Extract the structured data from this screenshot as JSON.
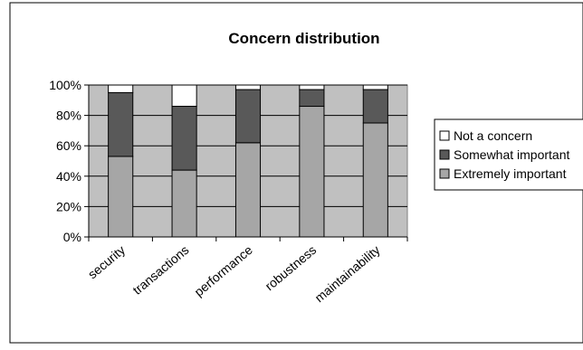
{
  "chart_data": {
    "type": "bar",
    "stacked": true,
    "percent_stacked": true,
    "title": "Concern distribution",
    "categories": [
      "security",
      "transactions",
      "performance",
      "robustness",
      "maintainability"
    ],
    "series": [
      {
        "name": "Extremely important",
        "color": "#a6a6a6",
        "values": [
          53,
          44,
          62,
          86,
          75
        ]
      },
      {
        "name": "Somewhat important",
        "color": "#595959",
        "values": [
          42,
          42,
          35,
          11,
          22
        ]
      },
      {
        "name": "Not a concern",
        "color": "#ffffff",
        "values": [
          5,
          14,
          3,
          3,
          3
        ]
      }
    ],
    "ylim": [
      0,
      100
    ],
    "yticks": [
      "0%",
      "20%",
      "40%",
      "60%",
      "80%",
      "100%"
    ],
    "plot_background": "#c0c0c0",
    "grid": true,
    "legend_position": "right"
  }
}
